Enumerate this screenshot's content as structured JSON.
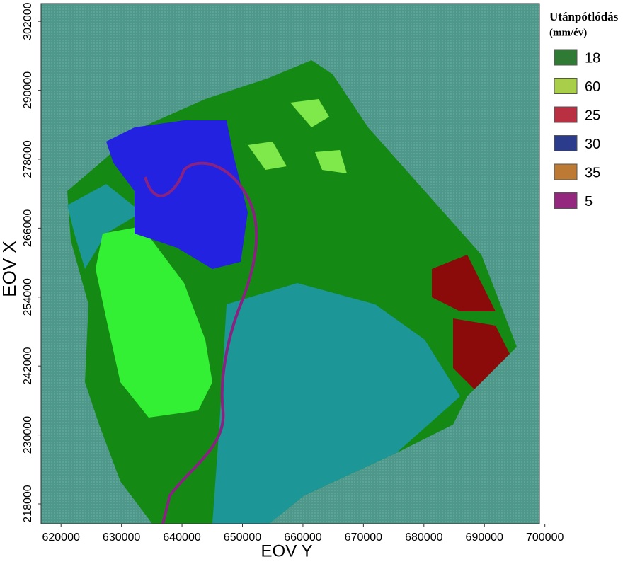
{
  "axes": {
    "x_label": "EOV Y",
    "y_label": "EOV X",
    "xlim": [
      616700,
      699100
    ],
    "xticks": [
      620000,
      630000,
      640000,
      650000,
      660000,
      670000,
      680000,
      690000,
      700000
    ],
    "ylim": [
      214550,
      305100
    ],
    "yticks": [
      218000,
      230000,
      242000,
      254000,
      266000,
      278000,
      290000,
      302000
    ]
  },
  "legend": {
    "title": "Utánpótlódás",
    "unit": "(mm/év)",
    "items": [
      {
        "value": 18,
        "color": "#2f7a34"
      },
      {
        "value": 60,
        "color": "#a9cf4a"
      },
      {
        "value": 25,
        "color": "#b83042"
      },
      {
        "value": 30,
        "color": "#2b3c8c"
      },
      {
        "value": 35,
        "color": "#bd7a34"
      },
      {
        "value": 5,
        "color": "#94287f"
      }
    ]
  }
}
